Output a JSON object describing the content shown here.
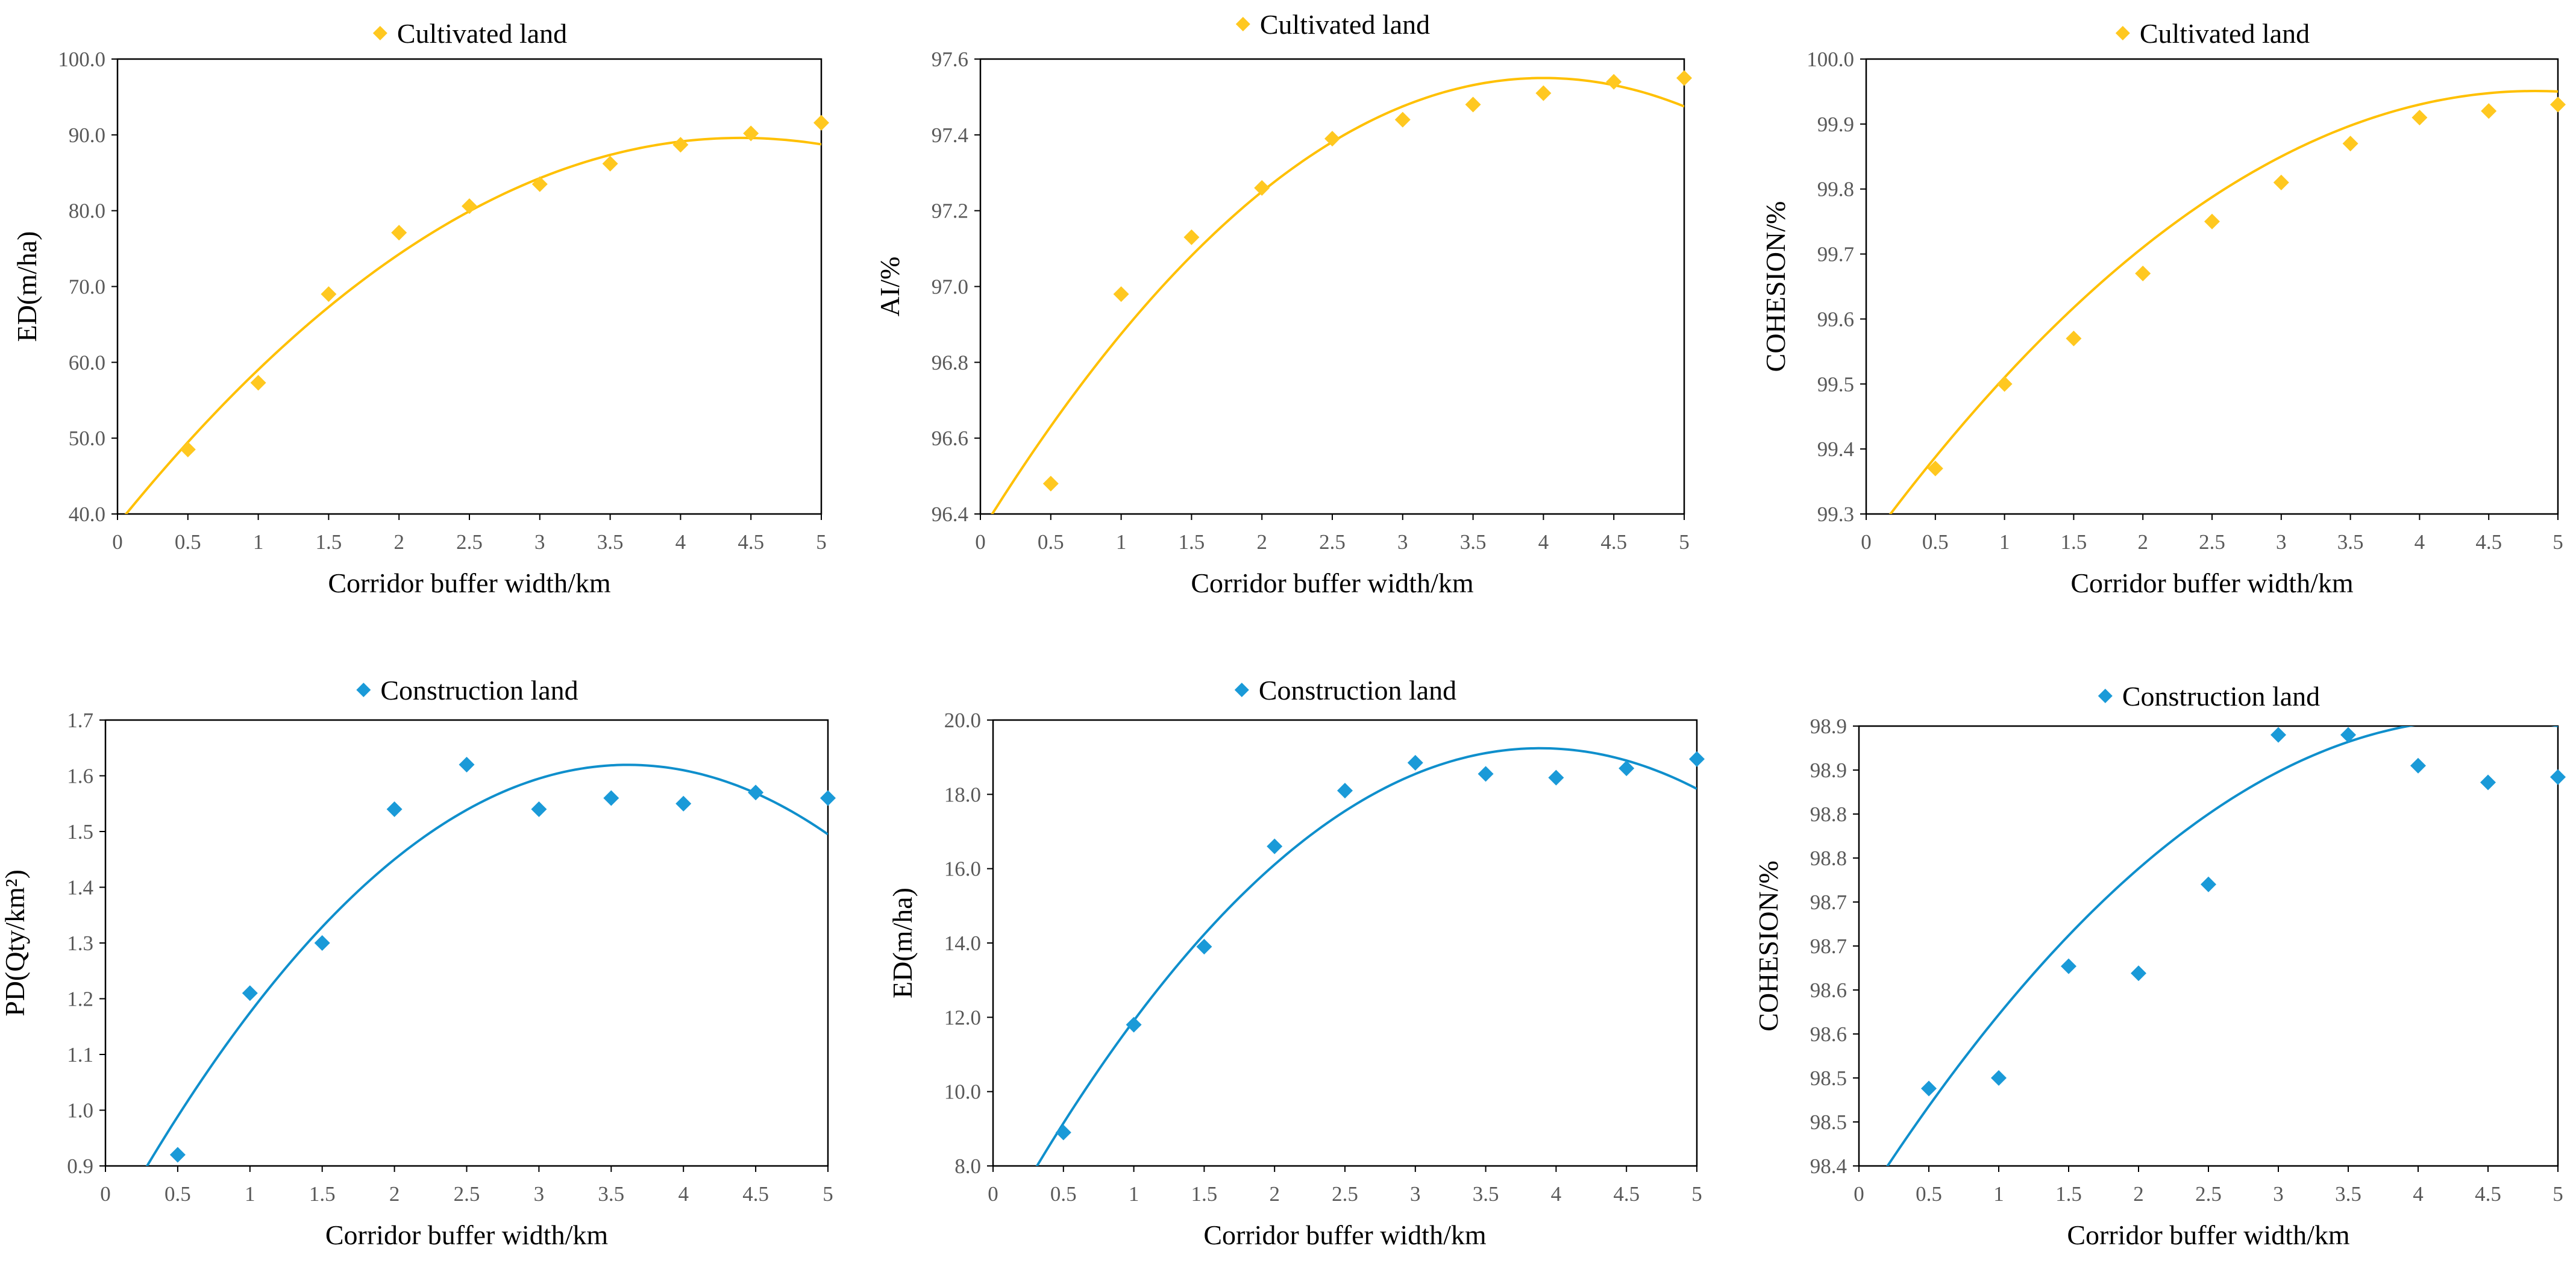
{
  "colors": {
    "cultivated": "#FFC000",
    "construction": "#0F8FCC",
    "cultivated_marker": "#FFC820",
    "construction_marker": "#1A9AD8",
    "axis": "#000000",
    "tick_text": "#595959"
  },
  "chart_data": [
    {
      "id": "cultivated-ed",
      "type": "scatter",
      "legend": "Cultivated land",
      "xlabel": "Corridor buffer width/km",
      "ylabel": "ED(m/ha)",
      "xlim": [
        0,
        5
      ],
      "ylim": [
        40,
        100
      ],
      "xticks": [
        0,
        0.5,
        1,
        1.5,
        2,
        2.5,
        3,
        3.5,
        4,
        4.5,
        5
      ],
      "xtick_labels": [
        "0",
        "0.5",
        "1",
        "1.5",
        "2",
        "2.5",
        "3",
        "3.5",
        "4",
        "4.5",
        "5"
      ],
      "yticks": [
        40,
        50,
        60,
        70,
        80,
        90,
        100
      ],
      "ytick_labels": [
        "40.0",
        "50.0",
        "60.0",
        "70.0",
        "80.0",
        "90.0",
        "100.0"
      ],
      "series": [
        {
          "name": "Cultivated land",
          "x": [
            0.5,
            1,
            1.5,
            2,
            2.5,
            3,
            3.5,
            4,
            4.5,
            5
          ],
          "y": [
            48.5,
            57.3,
            69.0,
            77.1,
            80.6,
            83.5,
            86.2,
            88.7,
            90.2,
            91.6
          ]
        }
      ],
      "trendline": {
        "type": "polynomial",
        "coefficients": [
          38.6,
          23.03,
          -2.6
        ]
      }
    },
    {
      "id": "cultivated-ai",
      "type": "scatter",
      "legend": "Cultivated land",
      "xlabel": "Corridor buffer width/km",
      "ylabel": "AI/%",
      "xlim": [
        0,
        5
      ],
      "ylim": [
        96.4,
        97.6
      ],
      "xticks": [
        0,
        0.5,
        1,
        1.5,
        2,
        2.5,
        3,
        3.5,
        4,
        4.5,
        5
      ],
      "xtick_labels": [
        "0",
        "0.5",
        "1",
        "1.5",
        "2",
        "2.5",
        "3",
        "3.5",
        "4",
        "4.5",
        "5"
      ],
      "yticks": [
        96.4,
        96.6,
        96.8,
        97.0,
        97.2,
        97.4,
        97.6
      ],
      "ytick_labels": [
        "96.4",
        "96.6",
        "96.8",
        "97.0",
        "97.2",
        "97.4",
        "97.6"
      ],
      "series": [
        {
          "name": "Cultivated land",
          "x": [
            0.5,
            1,
            1.5,
            2,
            2.5,
            3,
            3.5,
            4,
            4.5,
            5
          ],
          "y": [
            96.48,
            96.98,
            97.13,
            97.26,
            97.39,
            97.44,
            97.48,
            97.51,
            97.54,
            97.55
          ]
        }
      ],
      "trendline": {
        "type": "polynomial",
        "coefficients": [
          96.35,
          0.6,
          -0.075
        ]
      }
    },
    {
      "id": "cultivated-cohesion",
      "type": "scatter",
      "legend": "Cultivated land",
      "xlabel": "Corridor buffer width/km",
      "ylabel": "COHESION/%",
      "xlim": [
        0,
        5
      ],
      "ylim": [
        99.3,
        100.0
      ],
      "xticks": [
        0,
        0.5,
        1,
        1.5,
        2,
        2.5,
        3,
        3.5,
        4,
        4.5,
        5
      ],
      "xtick_labels": [
        "0",
        "0.5",
        "1",
        "1.5",
        "2",
        "2.5",
        "3",
        "3.5",
        "4",
        "4.5",
        "5"
      ],
      "yticks": [
        99.3,
        99.4,
        99.5,
        99.6,
        99.7,
        99.8,
        99.9,
        100.0
      ],
      "ytick_labels": [
        "99.3",
        "99.4",
        "99.5",
        "99.6",
        "99.7",
        "99.8",
        "99.9",
        "100.0"
      ],
      "series": [
        {
          "name": "Cultivated land",
          "x": [
            0.5,
            1,
            1.5,
            2,
            2.5,
            3,
            3.5,
            4,
            4.5,
            5
          ],
          "y": [
            99.37,
            99.5,
            99.57,
            99.67,
            99.75,
            99.81,
            99.87,
            99.91,
            99.92,
            99.93
          ]
        }
      ],
      "trendline": {
        "type": "polynomial",
        "coefficients": [
          99.25,
          0.29,
          -0.03
        ]
      }
    },
    {
      "id": "construction-pd",
      "type": "scatter",
      "legend": "Construction land",
      "xlabel": "Corridor buffer width/km",
      "ylabel": "PD(Qty/km²)",
      "xlim": [
        0,
        5
      ],
      "ylim": [
        0.9,
        1.7
      ],
      "xticks": [
        0,
        0.5,
        1,
        1.5,
        2,
        2.5,
        3,
        3.5,
        4,
        4.5,
        5
      ],
      "xtick_labels": [
        "0",
        "0.5",
        "1",
        "1.5",
        "2",
        "2.5",
        "3",
        "3.5",
        "4",
        "4.5",
        "5"
      ],
      "yticks": [
        0.9,
        1.0,
        1.1,
        1.2,
        1.3,
        1.4,
        1.5,
        1.6,
        1.7
      ],
      "ytick_labels": [
        "0.9",
        "1.0",
        "1.1",
        "1.2",
        "1.3",
        "1.4",
        "1.5",
        "1.6",
        "1.7"
      ],
      "series": [
        {
          "name": "Construction land",
          "x": [
            0.5,
            1,
            1.5,
            2,
            2.5,
            3,
            3.5,
            4,
            4.5,
            5
          ],
          "y": [
            0.92,
            1.21,
            1.3,
            1.54,
            1.62,
            1.54,
            1.56,
            1.55,
            1.57,
            1.56
          ]
        }
      ],
      "trendline": {
        "type": "polynomial",
        "coefficients": [
          0.77,
          0.47,
          -0.065
        ]
      }
    },
    {
      "id": "construction-ed",
      "type": "scatter",
      "legend": "Construction land",
      "xlabel": "Corridor buffer width/km",
      "ylabel": "ED(m/ha)",
      "xlim": [
        0,
        5
      ],
      "ylim": [
        8.0,
        20.0
      ],
      "xticks": [
        0,
        0.5,
        1,
        1.5,
        2,
        2.5,
        3,
        3.5,
        4,
        4.5,
        5
      ],
      "xtick_labels": [
        "0",
        "0.5",
        "1",
        "1.5",
        "2",
        "2.5",
        "3",
        "3.5",
        "4",
        "4.5",
        "5"
      ],
      "yticks": [
        8,
        10,
        12,
        14,
        16,
        18,
        20
      ],
      "ytick_labels": [
        "8.0",
        "10.0",
        "12.0",
        "14.0",
        "16.0",
        "18.0",
        "20.0"
      ],
      "series": [
        {
          "name": "Construction land",
          "x": [
            0.5,
            1,
            1.5,
            2,
            2.5,
            3,
            3.5,
            4,
            4.5,
            5
          ],
          "y": [
            8.9,
            11.8,
            13.9,
            16.6,
            18.1,
            18.85,
            18.55,
            18.45,
            18.7,
            18.95
          ]
        }
      ],
      "trendline": {
        "type": "polynomial",
        "coefficients": [
          5.95,
          6.84,
          -0.88
        ]
      }
    },
    {
      "id": "construction-cohesion",
      "type": "scatter",
      "legend": "Construction land",
      "xlabel": "Corridor buffer width/km",
      "ylabel": "COHESION/%",
      "xlim": [
        0,
        5
      ],
      "ylim": [
        98.4,
        98.9
      ],
      "xticks": [
        0,
        0.5,
        1,
        1.5,
        2,
        2.5,
        3,
        3.5,
        4,
        4.5,
        5
      ],
      "xtick_labels": [
        "0",
        "0.5",
        "1",
        "1.5",
        "2",
        "2.5",
        "3",
        "3.5",
        "4",
        "4.5",
        "5"
      ],
      "yticks": [
        98.4,
        98.45,
        98.5,
        98.55,
        98.6,
        98.65,
        98.7,
        98.75,
        98.8,
        98.85,
        98.9
      ],
      "ytick_labels": [
        "98.4",
        "98.5",
        "98.5",
        "98.6",
        "98.6",
        "98.7",
        "98.7",
        "98.8",
        "98.8",
        "98.9",
        "98.9"
      ],
      "series": [
        {
          "name": "Construction land",
          "x": [
            0.5,
            1,
            1.5,
            2,
            2.5,
            3,
            3.5,
            4,
            4.5,
            5
          ],
          "y": [
            98.488,
            98.5,
            98.627,
            98.619,
            98.72,
            98.89,
            98.89,
            98.855,
            98.836,
            98.842
          ]
        }
      ],
      "trendline": {
        "type": "polynomial",
        "coefficients": [
          98.35,
          0.25,
          -0.028
        ]
      }
    }
  ]
}
